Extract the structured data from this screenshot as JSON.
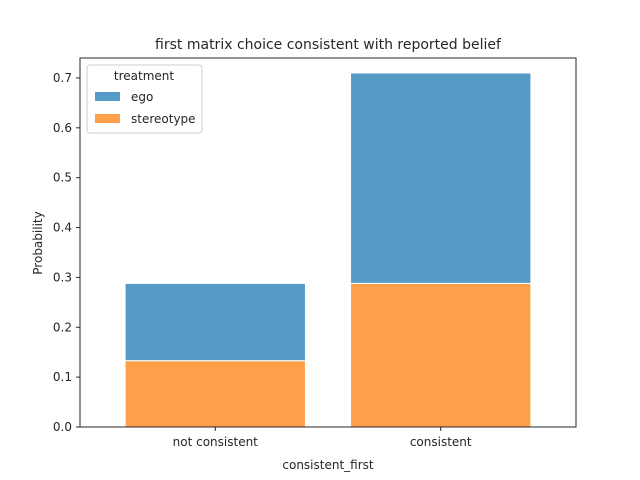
{
  "chart_data": {
    "type": "bar",
    "stacked": true,
    "title": "first matrix choice consistent with reported belief",
    "xlabel": "consistent_first",
    "ylabel": "Probability",
    "categories": [
      "not consistent",
      "consistent"
    ],
    "ylim": [
      0,
      0.74
    ],
    "yticks": [
      0.0,
      0.1,
      0.2,
      0.3,
      0.4,
      0.5,
      0.6,
      0.7
    ],
    "ytick_labels": [
      "0.0",
      "0.1",
      "0.2",
      "0.3",
      "0.4",
      "0.5",
      "0.6",
      "0.7"
    ],
    "grid": false,
    "legend": {
      "title": "treatment",
      "position": "top-left"
    },
    "series": [
      {
        "name": "stereotype",
        "color": "#ff9f4a",
        "values": [
          0.133,
          0.288
        ]
      },
      {
        "name": "ego",
        "color": "#569bc8",
        "values": [
          0.155,
          0.422
        ]
      }
    ]
  }
}
